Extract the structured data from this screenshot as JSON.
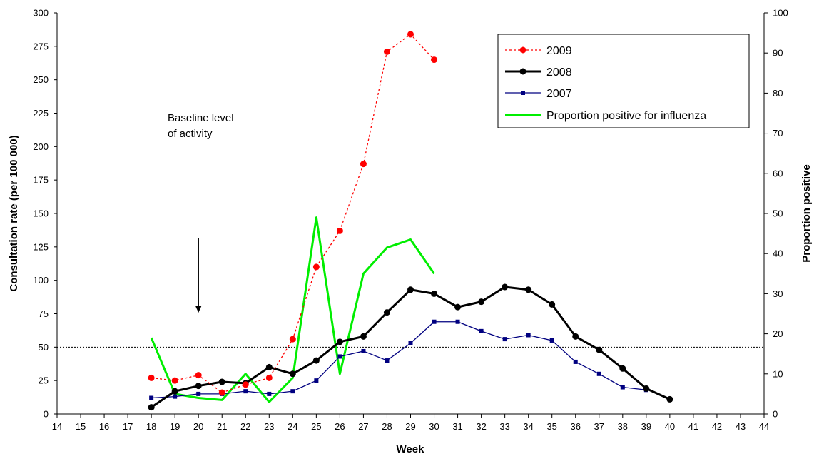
{
  "chart_data": {
    "type": "line",
    "title": "",
    "xlabel": "Week",
    "ylabel": "Consultation rate (per 100 000)",
    "y2label": "Proportion positive",
    "x_ticks": [
      "14",
      "15",
      "16",
      "17",
      "18",
      "19",
      "20",
      "21",
      "22",
      "23",
      "24",
      "25",
      "26",
      "27",
      "28",
      "29",
      "30",
      "31",
      "32",
      "33",
      "34",
      "35",
      "36",
      "37",
      "38",
      "39",
      "40",
      "41",
      "42",
      "43",
      "44"
    ],
    "xlim": [
      14,
      44
    ],
    "ylim": [
      0,
      300
    ],
    "y_ticks": [
      "0",
      "25",
      "50",
      "75",
      "100",
      "125",
      "150",
      "175",
      "200",
      "225",
      "250",
      "275",
      "300"
    ],
    "y2lim": [
      0,
      100
    ],
    "y2_ticks": [
      "0",
      "10",
      "20",
      "30",
      "40",
      "50",
      "60",
      "70",
      "80",
      "90",
      "100"
    ],
    "grid": false,
    "legend_position": "top-right",
    "baseline": {
      "value": 50,
      "label_line1": "Baseline level",
      "label_line2": "of activity",
      "arrow_week": 20
    },
    "series": [
      {
        "name": "2009",
        "axis": "left",
        "color": "#ff0000",
        "style": "dotted",
        "marker": "circle",
        "x": [
          18,
          19,
          20,
          21,
          22,
          23,
          24,
          25,
          26,
          27,
          28,
          29,
          30
        ],
        "y": [
          27,
          25,
          29,
          16,
          22,
          27,
          56,
          110,
          137,
          187,
          271,
          284,
          265
        ]
      },
      {
        "name": "2008",
        "axis": "left",
        "color": "#000000",
        "style": "solid",
        "marker": "circle",
        "x": [
          18,
          19,
          20,
          21,
          22,
          23,
          24,
          25,
          26,
          27,
          28,
          29,
          30,
          31,
          32,
          33,
          34,
          35,
          36,
          37,
          38,
          39,
          40
        ],
        "y": [
          5,
          17,
          21,
          24,
          23,
          35,
          30,
          40,
          54,
          58,
          76,
          93,
          90,
          80,
          84,
          95,
          93,
          82,
          58,
          48,
          34,
          19,
          11
        ]
      },
      {
        "name": "2007",
        "axis": "left",
        "color": "#000080",
        "style": "solid",
        "marker": "square",
        "x": [
          18,
          19,
          20,
          21,
          22,
          23,
          24,
          25,
          26,
          27,
          28,
          29,
          30,
          31,
          32,
          33,
          34,
          35,
          36,
          37,
          38,
          39
        ],
        "y": [
          12,
          13,
          15,
          15,
          17,
          15,
          17,
          25,
          43,
          47,
          40,
          53,
          69,
          69,
          62,
          56,
          59,
          55,
          39,
          30,
          20,
          18
        ]
      },
      {
        "name": "Proportion positive for influenza",
        "axis": "right",
        "color": "#00ee00",
        "style": "solid",
        "marker": "none",
        "x": [
          18,
          19,
          20,
          21,
          22,
          23,
          24,
          25,
          26,
          27,
          28,
          29,
          30
        ],
        "y": [
          19,
          5,
          4,
          3.5,
          10,
          3,
          9,
          49,
          10,
          35,
          41.5,
          43.5,
          35
        ]
      }
    ]
  }
}
